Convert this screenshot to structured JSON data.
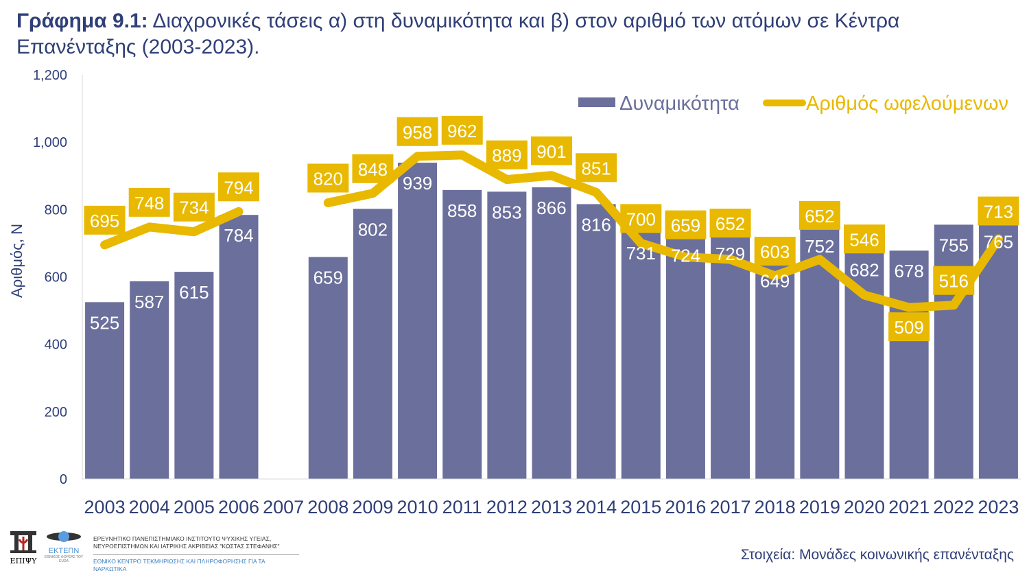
{
  "title": {
    "bold": "Γράφημα 9.1:",
    "rest": " Διαχρονικές τάσεις α) στη δυναμικότητα και β) στον αριθμό των ατόμων σε Κέντρα Επανένταξης (2003-2023)."
  },
  "chart_data": {
    "type": "bar+line",
    "categories": [
      "2003",
      "2004",
      "2005",
      "2006",
      "2007",
      "2008",
      "2009",
      "2010",
      "2011",
      "2012",
      "2013",
      "2014",
      "2015",
      "2016",
      "2017",
      "2018",
      "2019",
      "2020",
      "2021",
      "2022",
      "2023"
    ],
    "series": [
      {
        "name": "Δυναμικότητα",
        "type": "bar",
        "color": "#6b6f9b",
        "values": [
          525,
          587,
          615,
          784,
          null,
          659,
          802,
          939,
          858,
          853,
          866,
          816,
          731,
          724,
          729,
          649,
          752,
          682,
          678,
          755,
          765
        ]
      },
      {
        "name": "Αριθμός ωφελούμενων",
        "type": "line",
        "color": "#e8b900",
        "values": [
          695,
          748,
          734,
          794,
          null,
          820,
          848,
          958,
          962,
          889,
          901,
          851,
          700,
          659,
          652,
          603,
          652,
          546,
          509,
          516,
          713
        ]
      }
    ],
    "ylabel": "Αριθμός, Ν",
    "ylim": [
      0,
      1200
    ],
    "yticks": [
      "0",
      "200",
      "400",
      "600",
      "800",
      "1,000",
      "1,200"
    ],
    "grid": false,
    "legend": "top-right"
  },
  "footer": {
    "logo1_text": "ΕΠΙΨΥ",
    "logo2_text": "ΕΚΤΕΠΝ",
    "logo2_sub": "ΕΘΝΙΚΟΣ ΦΟΡΕΑΣ ΤΟΥ EUDA",
    "line1": "ΕΡΕΥΝΗΤΙΚΟ ΠΑΝΕΠΙΣΤΗΜΙΑΚΟ ΙΝΣΤΙΤΟΥΤΟ ΨΥΧΙΚΗΣ ΥΓΕΙΑΣ,",
    "line2": "ΝΕΥΡΟΕΠΙΣΤΗΜΩΝ ΚΑΙ ΙΑΤΡΙΚΗΣ ΑΚΡΙΒΕΙΑΣ \"ΚΩΣΤΑΣ ΣΤΕΦΑΝΗΣ\"",
    "line3": "ΕΘΝΙΚΟ ΚΕΝΤΡΟ ΤΕΚΜΗΡΙΩΣΗΣ ΚΑΙ ΠΛΗΡΟΦΟΡΗΣΗΣ ΓΙΑ ΤΑ ΝΑΡΚΩΤΙΚΑ",
    "source": "Στοιχεία: Μονάδες κοινωνικής επανένταξης"
  }
}
